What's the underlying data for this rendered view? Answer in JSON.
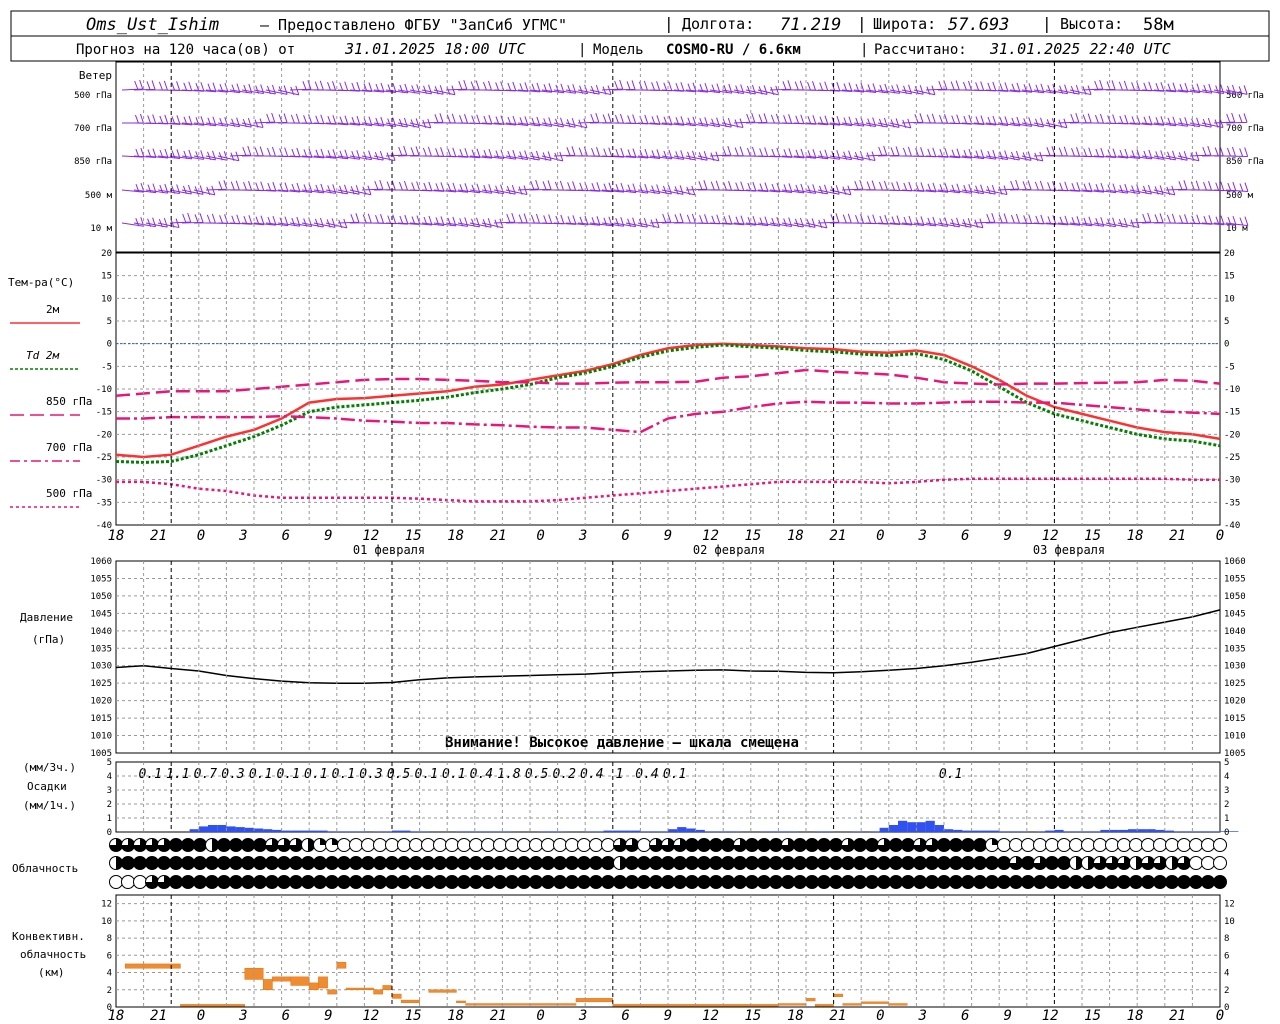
{
  "header": {
    "station": "Oms_Ust_Ishim",
    "provider": "– Предоставлено ФГБУ \"ЗапСиб УГМС\"",
    "lon_label": "Долгота:",
    "lon_value": "71.219",
    "lat_label": "Широта:",
    "lat_value": "57.693",
    "alt_label": "Высота:",
    "alt_value": "58м",
    "forecast_label": "Прогноз на 120 часа(ов) от",
    "forecast_time": "31.01.2025 18:00 UTC",
    "model_label": "Модель",
    "model_value": "COSMO-RU / 6.6км",
    "calc_label": "Рассчитано:",
    "calc_time": "31.01.2025 22:40 UTC"
  },
  "wind_panel": {
    "title": "Ветер",
    "levels": [
      "500 гПа",
      "700 гПа",
      "850 гПа",
      "500 м",
      "10 м"
    ]
  },
  "temp_panel": {
    "title": "Тем-ра(°C)",
    "legend": [
      "2м",
      "Td  2м",
      "850 гПа",
      "700 гПа",
      "500 гПа"
    ],
    "legend_colors": [
      "#ff3030",
      "#008000",
      "#e8157a",
      "#e8157a",
      "#e8157a"
    ]
  },
  "pressure_panel": {
    "title": "Давление",
    "unit": "(гПа)",
    "warning": "Внимание! Высокое давление – шкала смещена"
  },
  "precip_panel": {
    "unit_3h": "(мм/3ч.)",
    "title": "Осадки",
    "unit_1h": "(мм/1ч.)"
  },
  "cloud_panel": {
    "title": "Облачность"
  },
  "conv_panel": {
    "title_1": "Конвективн.",
    "title_2": "облачность",
    "unit": "(км)"
  },
  "x_ticks": [
    "18",
    "21",
    "0",
    "3",
    "6",
    "9",
    "12",
    "15",
    "18",
    "21",
    "0",
    "3",
    "6",
    "9",
    "12",
    "15",
    "18",
    "21",
    "0",
    "3",
    "6",
    "9",
    "12",
    "15",
    "18",
    "21",
    "0"
  ],
  "dates": [
    "01 февраля",
    "02 февраля",
    "03 февраля"
  ],
  "chart_data": [
    {
      "type": "line",
      "name": "temperature",
      "x_hours": [
        0,
        3,
        6,
        9,
        12,
        15,
        18,
        21,
        24,
        27,
        30,
        33,
        36,
        39,
        42,
        45,
        48,
        51,
        54,
        57,
        60,
        63,
        66,
        69,
        72,
        75,
        78,
        81,
        84,
        87,
        90,
        93,
        96,
        99,
        102,
        105,
        108,
        111,
        114,
        117,
        120
      ],
      "ylim": [
        -40,
        20
      ],
      "yticks": [
        20,
        15,
        10,
        5,
        0,
        -5,
        -10,
        -15,
        -20,
        -25,
        -30,
        -35,
        -40
      ],
      "series": [
        {
          "name": "2м",
          "color": "#ff3030",
          "values": [
            -24.5,
            -25,
            -24.5,
            -22.5,
            -20.5,
            -19,
            -16.5,
            -13,
            -12.2,
            -12,
            -11.5,
            -11,
            -10.5,
            -9.5,
            -9,
            -8,
            -7,
            -6,
            -4.5,
            -2.5,
            -1,
            -0.3,
            0,
            -0.3,
            -0.6,
            -1,
            -1.2,
            -1.8,
            -2,
            -1.5,
            -2.5,
            -5,
            -8,
            -11.5,
            -14,
            -15.5,
            -17,
            -18.5,
            -19.5,
            -20,
            -21
          ]
        },
        {
          "name": "Td  2м",
          "color": "#008000",
          "values": [
            -26,
            -26.2,
            -26,
            -24.5,
            -22.5,
            -20.5,
            -18,
            -15,
            -14,
            -13.5,
            -13,
            -12.5,
            -11.8,
            -10.8,
            -10,
            -9,
            -7.5,
            -6.5,
            -5,
            -3,
            -1.6,
            -0.8,
            -0.3,
            -0.7,
            -1,
            -1.5,
            -1.8,
            -2.3,
            -2.6,
            -2.2,
            -3.5,
            -6,
            -9.5,
            -13,
            -15.5,
            -17,
            -18.5,
            -20,
            -21,
            -21.5,
            -22.5
          ]
        },
        {
          "name": "850 гПа",
          "color": "#e8157a",
          "dash": "14,6",
          "values": [
            -11.5,
            -11,
            -10.5,
            -10.5,
            -10.5,
            -10,
            -9.5,
            -9,
            -8.5,
            -8,
            -7.8,
            -7.8,
            -8,
            -8.2,
            -8.5,
            -8.5,
            -8.8,
            -8.8,
            -8.6,
            -8.5,
            -8.5,
            -8.4,
            -7.5,
            -7.2,
            -6.5,
            -5.8,
            -6.2,
            -6.5,
            -6.8,
            -7.5,
            -8.5,
            -8.8,
            -9,
            -8.8,
            -8.8,
            -8.7,
            -8.6,
            -8.5,
            -8,
            -8.2,
            -8.8
          ]
        },
        {
          "name": "700 гПа",
          "color": "#e8157a",
          "dash": "14,4,3,4",
          "values": [
            -16.5,
            -16.5,
            -16.2,
            -16.2,
            -16.2,
            -16.2,
            -16,
            -16.2,
            -16.5,
            -17,
            -17.2,
            -17.5,
            -17.5,
            -17.8,
            -18,
            -18.3,
            -18.5,
            -18.5,
            -19,
            -19.5,
            -16.5,
            -15.5,
            -15,
            -14,
            -13.2,
            -12.8,
            -13,
            -13,
            -13.2,
            -13.2,
            -13,
            -12.8,
            -12.8,
            -13,
            -13,
            -13.5,
            -14,
            -14.5,
            -15,
            -15.2,
            -15.5
          ]
        },
        {
          "name": "500 гПа",
          "color": "#e8157a",
          "dash": "3,3",
          "values": [
            -30.5,
            -30.5,
            -31,
            -32,
            -32.5,
            -33.5,
            -34,
            -34,
            -34,
            -34,
            -34,
            -34.2,
            -34.5,
            -34.8,
            -34.8,
            -34.8,
            -34.5,
            -34,
            -33.5,
            -33,
            -32.5,
            -32,
            -31.5,
            -31,
            -30.5,
            -30.5,
            -30.5,
            -30.5,
            -30.8,
            -30.5,
            -30,
            -29.8,
            -29.8,
            -29.8,
            -29.8,
            -29.8,
            -29.8,
            -29.8,
            -29.8,
            -30,
            -30
          ]
        }
      ]
    },
    {
      "type": "line",
      "name": "pressure",
      "x_hours": [
        0,
        3,
        6,
        9,
        12,
        15,
        18,
        21,
        24,
        27,
        30,
        33,
        36,
        39,
        42,
        45,
        48,
        51,
        54,
        57,
        60,
        63,
        66,
        69,
        72,
        75,
        78,
        81,
        84,
        87,
        90,
        93,
        96,
        99,
        102,
        105,
        108,
        111,
        114,
        117,
        120
      ],
      "ylim": [
        1005,
        1060
      ],
      "yticks": [
        1060,
        1055,
        1050,
        1045,
        1040,
        1035,
        1030,
        1025,
        1020,
        1015,
        1010,
        1005
      ],
      "series": [
        {
          "name": "",
          "color": "#000000",
          "values": [
            1029.5,
            1030,
            1029.2,
            1028.5,
            1027.2,
            1026.3,
            1025.6,
            1025.1,
            1025,
            1025,
            1025.2,
            1026,
            1026.5,
            1026.8,
            1027,
            1027.2,
            1027.4,
            1027.6,
            1028,
            1028.3,
            1028.5,
            1028.7,
            1028.8,
            1028.5,
            1028.4,
            1028.1,
            1028,
            1028.3,
            1028.7,
            1029.2,
            1030,
            1031,
            1032.2,
            1033.5,
            1035.5,
            1037.5,
            1039.5,
            1041,
            1042.5,
            1044,
            1046
          ]
        }
      ]
    },
    {
      "type": "bar",
      "name": "precipitation",
      "ylim": [
        0,
        5
      ],
      "yticks": [
        5,
        4,
        3,
        2,
        1,
        0
      ],
      "totals_3h": [
        "0.1",
        "1.1",
        "0.7",
        "0.3",
        "0.1",
        "0.1",
        "0.1",
        "0.1",
        "0.3",
        "0.5",
        "0.1",
        "0.1",
        "0.4",
        "1.8",
        "0.5",
        "0.2",
        "0.4",
        "1",
        "0.4",
        "0.1",
        "0.1"
      ],
      "totals_3h_hours": [
        6,
        9,
        12,
        15,
        18,
        21,
        24,
        27,
        30,
        33,
        36,
        39,
        42,
        45,
        48,
        51,
        54,
        57,
        60,
        63,
        93
      ],
      "hourly_mm": [
        0,
        0,
        0,
        0,
        0,
        0,
        0,
        0,
        0.2,
        0.4,
        0.5,
        0.5,
        0.4,
        0.35,
        0.3,
        0.25,
        0.2,
        0.15,
        0.1,
        0.1,
        0.1,
        0.1,
        0.1,
        0.05,
        0.05,
        0.05,
        0.05,
        0,
        0.05,
        0.05,
        0.1,
        0.1,
        0.05,
        0.05,
        0,
        0,
        0,
        0.05,
        0.05,
        0.05,
        0.05,
        0.05,
        0.05,
        0,
        0,
        0,
        0.05,
        0.05,
        0.05,
        0,
        0,
        0.05,
        0.05,
        0.1,
        0.1,
        0.1,
        0.1,
        0.05,
        0.05,
        0.05,
        0.2,
        0.35,
        0.25,
        0.15,
        0.05,
        0.05,
        0.05,
        0.05,
        0,
        0,
        0.05,
        0.05,
        0.05,
        0.05,
        0,
        0,
        0.05,
        0.05,
        0,
        0,
        0.05,
        0,
        0.05,
        0.3,
        0.5,
        0.8,
        0.7,
        0.7,
        0.8,
        0.5,
        0.2,
        0.15,
        0.1,
        0.1,
        0.1,
        0.1,
        0.05,
        0.05,
        0.05,
        0,
        0.05,
        0.1,
        0.15,
        0.05,
        0.05,
        0.05,
        0.05,
        0.15,
        0.15,
        0.15,
        0.2,
        0.2,
        0.2,
        0.15,
        0.1,
        0.05,
        0.05,
        0.05,
        0.05,
        0.05,
        0.05,
        0.05
      ]
    },
    {
      "type": "heatmap",
      "name": "cloudiness",
      "rows": 3,
      "row_codes": [
        "333334442444433321100000000000000000000000330333444434443444434434433444410000000000000000000",
        "244444444444444444444444444444444444444444244444444444444444444444444444444343442233323323000",
        "000334444444444444444444444444444444444444444444444444444444444444444444444444444444444444444"
      ]
    },
    {
      "type": "bar",
      "name": "convective_clouds",
      "ylim": [
        0,
        13
      ],
      "yticks": [
        12,
        10,
        8,
        6,
        4,
        2,
        0
      ],
      "segments_hours_km": [
        [
          1,
          7,
          4.5,
          5
        ],
        [
          7,
          14,
          0.1,
          0.3
        ],
        [
          14,
          16,
          3.2,
          4.5
        ],
        [
          16,
          17,
          2,
          3.2
        ],
        [
          17,
          19,
          3,
          3.5
        ],
        [
          19,
          21,
          2.5,
          3.5
        ],
        [
          21,
          22,
          2,
          2.8
        ],
        [
          22,
          23,
          2.2,
          3.5
        ],
        [
          23,
          24,
          1.5,
          2
        ],
        [
          24,
          25,
          4.5,
          5.2
        ],
        [
          25,
          28,
          2,
          2.2
        ],
        [
          28,
          29,
          1.5,
          2
        ],
        [
          29,
          30,
          2,
          2.5
        ],
        [
          30,
          31,
          1,
          1.5
        ],
        [
          31,
          33,
          0.5,
          0.8
        ],
        [
          34,
          37,
          1.7,
          2
        ],
        [
          37,
          38,
          0.5,
          0.7
        ],
        [
          38,
          42,
          0.2,
          0.4
        ],
        [
          42,
          50,
          0.2,
          0.4
        ],
        [
          50,
          54,
          0.6,
          1
        ],
        [
          54,
          72,
          0.1,
          0.3
        ],
        [
          72,
          75,
          0.2,
          0.4
        ],
        [
          75,
          76,
          0.7,
          1
        ],
        [
          76,
          78,
          0.1,
          0.3
        ],
        [
          78,
          79,
          1.2,
          1.5
        ],
        [
          79,
          81,
          0.2,
          0.4
        ],
        [
          81,
          84,
          0.4,
          0.6
        ],
        [
          84,
          86,
          0.2,
          0.4
        ]
      ]
    }
  ]
}
